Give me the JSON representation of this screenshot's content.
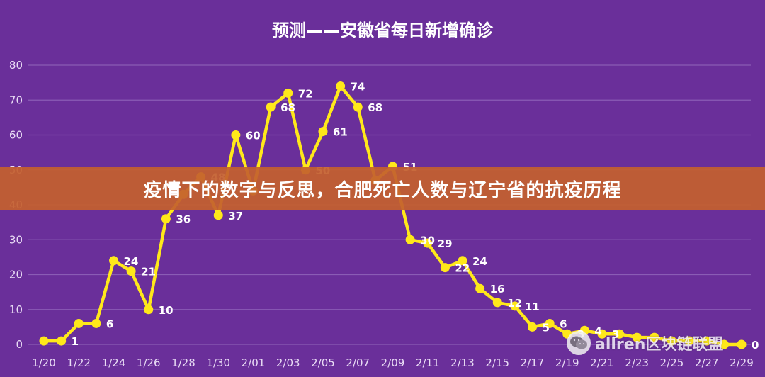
{
  "banner": {
    "text": "疫情下的数字与反思，合肥死亡人数与辽宁省的抗疫历程"
  },
  "watermark": {
    "text": "allren区块链联盟",
    "icon": "wechat-icon"
  },
  "colors": {
    "background": "#6a2f9a",
    "line": "#ffe81a",
    "grid": "#8a5cb5",
    "banner": "#c4602e"
  },
  "chart_data": {
    "type": "line",
    "title": "预测——安徽省每日新增确诊",
    "xlabel": "",
    "ylabel": "",
    "ylim": [
      0,
      80
    ],
    "yticks": [
      0,
      10,
      20,
      30,
      40,
      50,
      60,
      70,
      80
    ],
    "grid": true,
    "x": [
      "1/20",
      "1/21",
      "1/22",
      "1/23",
      "1/24",
      "1/25",
      "1/26",
      "1/27",
      "1/28",
      "1/29",
      "1/30",
      "1/31",
      "2/01",
      "2/02",
      "2/03",
      "2/04",
      "2/05",
      "2/06",
      "2/07",
      "2/08",
      "2/09",
      "2/10",
      "2/11",
      "2/12",
      "2/13",
      "2/14",
      "2/15",
      "2/16",
      "2/17",
      "2/18",
      "2/19",
      "2/20",
      "2/21",
      "2/22",
      "2/23",
      "2/24",
      "2/25",
      "2/26",
      "2/27",
      "2/28",
      "2/29"
    ],
    "xtick_labels": [
      "1/20",
      "1/22",
      "1/24",
      "1/26",
      "1/28",
      "1/30",
      "2/01",
      "2/03",
      "2/05",
      "2/07",
      "2/09",
      "2/11",
      "2/13",
      "2/15",
      "2/17",
      "2/19",
      "2/21",
      "2/23",
      "2/25",
      "2/27",
      "2/29"
    ],
    "series": [
      {
        "values": [
          1,
          1,
          6,
          6,
          24,
          21,
          10,
          36,
          43,
          48,
          37,
          60,
          44,
          68,
          72,
          50,
          61,
          74,
          68,
          47,
          51,
          30,
          29,
          22,
          24,
          16,
          12,
          11,
          5,
          6,
          3,
          4,
          3,
          3,
          2,
          2,
          1,
          1,
          1,
          0,
          0
        ],
        "data_labels": [
          null,
          "1",
          null,
          "6",
          "24",
          "21",
          "10",
          "36",
          null,
          "48",
          "37",
          "60",
          null,
          "68",
          "72",
          "50",
          "61",
          "74",
          "68",
          null,
          "51",
          "30",
          "29",
          "22",
          "24",
          "16",
          "12",
          "11",
          "5",
          "6",
          "3",
          "4",
          "3",
          null,
          null,
          null,
          null,
          null,
          null,
          null,
          "0"
        ]
      }
    ]
  }
}
